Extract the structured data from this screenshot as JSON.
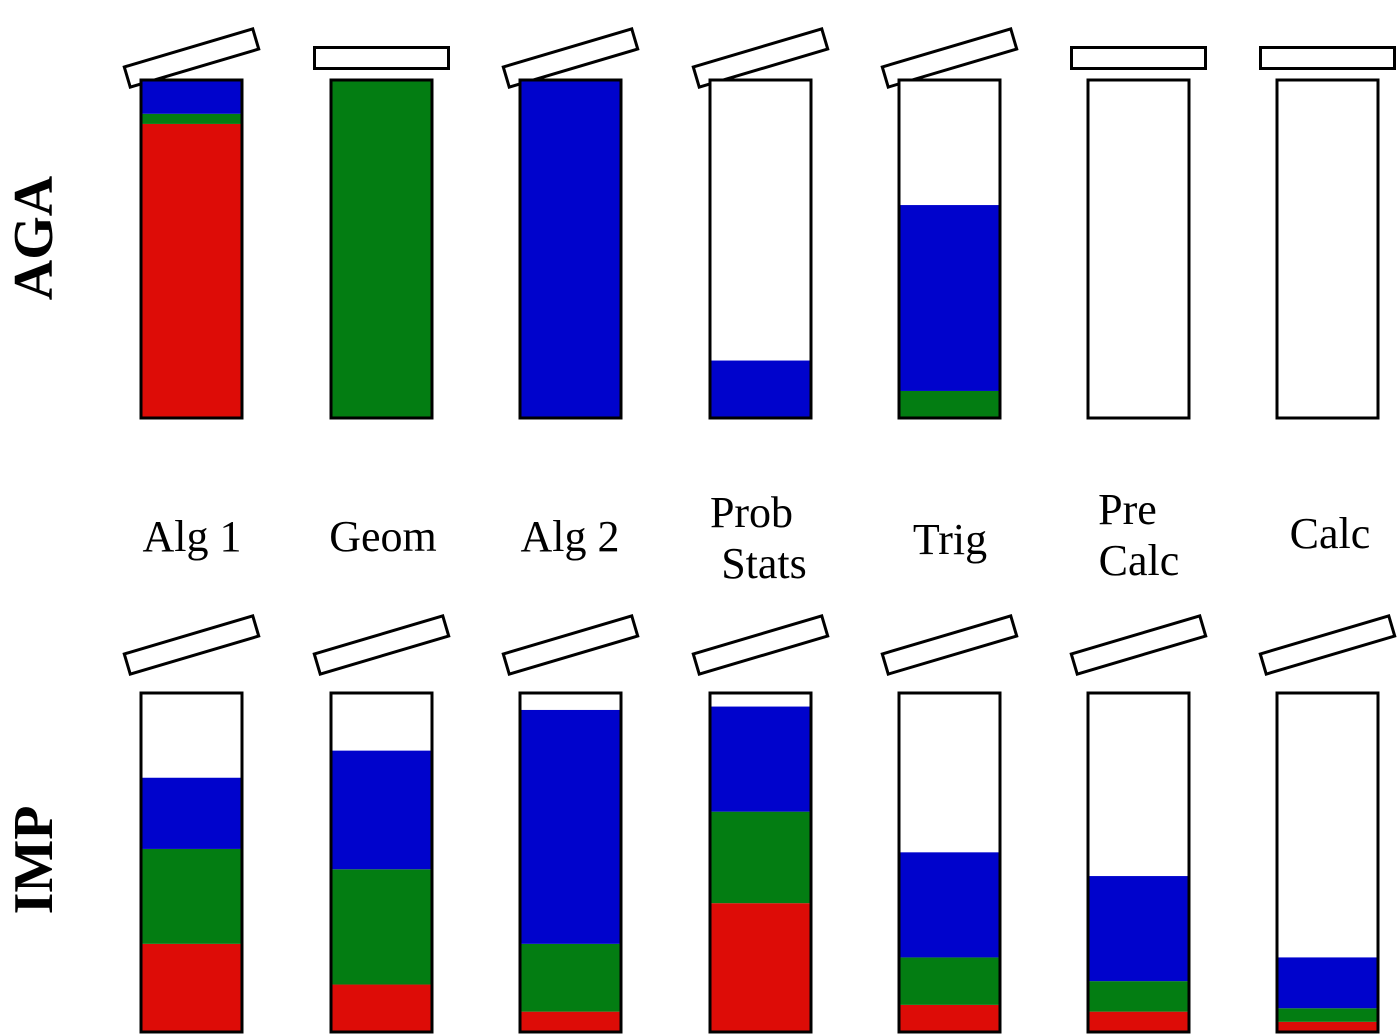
{
  "colors": {
    "red": "#dd0c07",
    "green": "#037d12",
    "blue": "#0003cc",
    "empty": "#ffffff",
    "outline": "#000000"
  },
  "segment_order": [
    "red",
    "green",
    "blue"
  ],
  "courses": [
    {
      "label_lines": [
        "Alg 1"
      ]
    },
    {
      "label_lines": [
        "Geom"
      ]
    },
    {
      "label_lines": [
        "Alg 2"
      ]
    },
    {
      "label_lines": [
        "Prob",
        "Stats"
      ]
    },
    {
      "label_lines": [
        "Trig"
      ]
    },
    {
      "label_lines": [
        "Pre",
        "Calc"
      ]
    },
    {
      "label_lines": [
        "Calc"
      ]
    }
  ],
  "rows": [
    {
      "label": "AGA",
      "vials": [
        {
          "lid": "tilted",
          "fill": {
            "red": 0.87,
            "green": 0.03,
            "blue": 0.1
          }
        },
        {
          "lid": "closed",
          "fill": {
            "red": 0.0,
            "green": 1.0,
            "blue": 0.0
          }
        },
        {
          "lid": "tilted",
          "fill": {
            "red": 0.0,
            "green": 0.0,
            "blue": 1.0
          }
        },
        {
          "lid": "tilted",
          "fill": {
            "red": 0.0,
            "green": 0.0,
            "blue": 0.17
          }
        },
        {
          "lid": "tilted",
          "fill": {
            "red": 0.0,
            "green": 0.08,
            "blue": 0.55
          }
        },
        {
          "lid": "closed",
          "fill": {
            "red": 0.0,
            "green": 0.0,
            "blue": 0.0
          }
        },
        {
          "lid": "closed",
          "fill": {
            "red": 0.0,
            "green": 0.0,
            "blue": 0.0
          }
        }
      ]
    },
    {
      "label": "IMP",
      "vials": [
        {
          "lid": "tilted",
          "fill": {
            "red": 0.26,
            "green": 0.28,
            "blue": 0.21
          }
        },
        {
          "lid": "tilted",
          "fill": {
            "red": 0.14,
            "green": 0.34,
            "blue": 0.35
          }
        },
        {
          "lid": "tilted",
          "fill": {
            "red": 0.06,
            "green": 0.2,
            "blue": 0.69
          }
        },
        {
          "lid": "tilted",
          "fill": {
            "red": 0.38,
            "green": 0.27,
            "blue": 0.31
          }
        },
        {
          "lid": "tilted",
          "fill": {
            "red": 0.08,
            "green": 0.14,
            "blue": 0.31
          }
        },
        {
          "lid": "tilted",
          "fill": {
            "red": 0.06,
            "green": 0.09,
            "blue": 0.31
          }
        },
        {
          "lid": "tilted",
          "fill": {
            "red": 0.03,
            "green": 0.04,
            "blue": 0.15
          }
        }
      ]
    }
  ]
}
